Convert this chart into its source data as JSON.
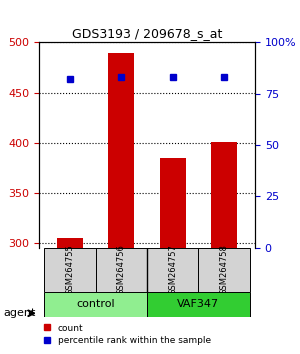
{
  "title": "GDS3193 / 209678_s_at",
  "samples": [
    "GSM264755",
    "GSM264756",
    "GSM264757",
    "GSM264758"
  ],
  "counts": [
    305,
    489,
    385,
    401
  ],
  "percentile_ranks": [
    82,
    83,
    83,
    83
  ],
  "groups": [
    "control",
    "control",
    "VAF347",
    "VAF347"
  ],
  "group_colors": [
    "#90EE90",
    "#90EE90",
    "#32CD32",
    "#32CD32"
  ],
  "bar_color": "#CC0000",
  "dot_color": "#0000CC",
  "left_ylim": [
    295,
    500
  ],
  "left_yticks": [
    300,
    350,
    400,
    450,
    500
  ],
  "right_ylim": [
    0,
    100
  ],
  "right_yticks": [
    0,
    25,
    50,
    75,
    100
  ],
  "left_tick_color": "#CC0000",
  "right_tick_color": "#0000CC",
  "xlabel": "",
  "agent_label": "agent",
  "legend_count_label": "count",
  "legend_pct_label": "percentile rank within the sample"
}
